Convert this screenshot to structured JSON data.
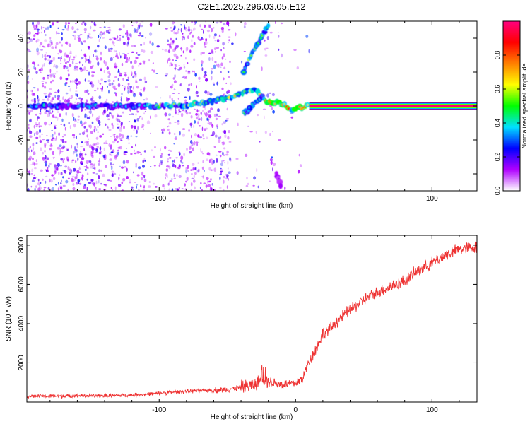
{
  "title": "C2E1.2025.296.03.05.E12",
  "chart_data": [
    {
      "type": "heatmap",
      "xlabel": "Height of straight line (km)",
      "ylabel": "Frequency (Hz)",
      "xlim": [
        -197,
        133
      ],
      "ylim": [
        -50,
        50
      ],
      "xticks": [
        -100,
        0,
        100
      ],
      "xtick_labels": [
        "-100",
        "",
        "100"
      ],
      "yticks": [
        -40,
        -20,
        0,
        20,
        40
      ],
      "ytick_labels": [
        "-40",
        "-20",
        "0",
        "20",
        "40"
      ],
      "colorbar": {
        "label": "Normalized spectral amplitude",
        "range": [
          0,
          1
        ],
        "ticks": [
          0,
          0.2,
          0.4,
          0.6,
          0.8
        ],
        "tick_labels": [
          "0.0",
          "0.2",
          "0.4",
          "0.6",
          "0.8"
        ],
        "stops": [
          "#ffffff",
          "#b000ff",
          "#0000ff",
          "#00e0ff",
          "#00ff00",
          "#ffff00",
          "#ff8000",
          "#ff0000",
          "#ff0080"
        ]
      },
      "features": {
        "main_track": [
          [
            -197,
            0
          ],
          [
            -150,
            0
          ],
          [
            -100,
            0
          ],
          [
            -80,
            0.5
          ],
          [
            -60,
            3
          ],
          [
            -48,
            5
          ],
          [
            -38,
            8
          ],
          [
            -30,
            10
          ],
          [
            -22,
            3
          ],
          [
            -15,
            2
          ],
          [
            -8,
            1
          ],
          [
            -3,
            -2
          ],
          [
            5,
            -1
          ],
          [
            8,
            0
          ],
          [
            10,
            0
          ]
        ],
        "upper_branch": [
          [
            -38,
            20
          ],
          [
            -34,
            28
          ],
          [
            -30,
            34
          ],
          [
            -27,
            38
          ],
          [
            -24,
            42
          ],
          [
            -20,
            48
          ]
        ],
        "lower_branch": [
          [
            -38,
            -4
          ],
          [
            -35,
            -3
          ],
          [
            -32,
            0
          ],
          [
            -28,
            3
          ],
          [
            -24,
            6
          ]
        ],
        "lower_fragment": [
          [
            -14,
            -40
          ],
          [
            -12,
            -44
          ],
          [
            -11,
            -47
          ]
        ],
        "steady_line": {
          "x_start": 10,
          "x_end": 133,
          "freq": 0,
          "amplitude": 1
        }
      }
    },
    {
      "type": "line",
      "xlabel": "Height of straight line (km)",
      "ylabel": "SNR (10 * v/v)",
      "xlim": [
        -197,
        133
      ],
      "ylim": [
        0,
        8500
      ],
      "xticks": [
        -100,
        0,
        100
      ],
      "xtick_labels": [
        "-100",
        "0",
        "100"
      ],
      "yticks": [
        2000,
        4000,
        6000,
        8000
      ],
      "ytick_labels": [
        "2000",
        "4000",
        "6000",
        "8000"
      ],
      "series": [
        {
          "name": "SNR",
          "color": "#ee3333",
          "x": [
            -197,
            -180,
            -160,
            -140,
            -120,
            -100,
            -80,
            -60,
            -50,
            -40,
            -30,
            -25,
            -20,
            -10,
            0,
            5,
            10,
            15,
            20,
            25,
            30,
            40,
            50,
            60,
            70,
            80,
            90,
            100,
            110,
            120,
            133
          ],
          "y": [
            300,
            300,
            320,
            320,
            350,
            450,
            550,
            600,
            650,
            750,
            900,
            1100,
            1050,
            900,
            950,
            1200,
            2100,
            2700,
            3500,
            3700,
            4100,
            4700,
            5200,
            5600,
            5900,
            6200,
            6700,
            7100,
            7500,
            7800,
            7900
          ]
        }
      ]
    }
  ]
}
